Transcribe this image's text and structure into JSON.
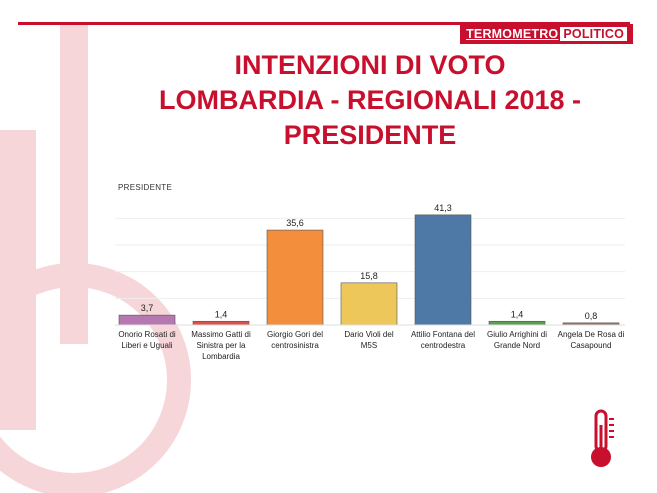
{
  "header": {
    "brand_part1": "TERMOMETRO",
    "brand_part2": "POLITICO",
    "title_lines": [
      "INTENZIONI DI VOTO",
      "LOMBARDIA - REGIONALI 2018 -",
      "PRESIDENTE"
    ]
  },
  "chart_data": {
    "type": "bar",
    "title": "PRESIDENTE",
    "categories": [
      "Onorio Rosati di Liberi e Uguali",
      "Massimo Gatti di Sinistra per la Lombardia",
      "Giorgio Gori del centrosinistra",
      "Dario Violi del M5S",
      "Attilio Fontana del centrodestra",
      "Giulio Arrighini di Grande Nord",
      "Angela De Rosa di Casapound"
    ],
    "category_lines": [
      [
        "Onorio Rosati di",
        "Liberi e Uguali"
      ],
      [
        "Massimo Gatti di",
        "Sinistra per la",
        "Lombardia"
      ],
      [
        "Giorgio Gori del",
        "centrosinistra"
      ],
      [
        "Dario Violi del",
        "M5S"
      ],
      [
        "Attilio Fontana del",
        "centrodestra"
      ],
      [
        "Giulio Arrighini di",
        "Grande Nord"
      ],
      [
        "Angela De Rosa di",
        "Casapound"
      ]
    ],
    "values": [
      3.7,
      1.4,
      35.6,
      15.8,
      41.3,
      1.4,
      0.8
    ],
    "value_labels": [
      "3,7",
      "1,4",
      "35,6",
      "15,8",
      "41,3",
      "1,4",
      "0,8"
    ],
    "colors": [
      "#b678b0",
      "#e0504a",
      "#f28e3c",
      "#eec75b",
      "#4e79a7",
      "#59a14f",
      "#9c755f"
    ],
    "ylim": [
      0,
      45
    ],
    "grid": true,
    "xlabel": "",
    "ylabel": ""
  },
  "colors": {
    "accent": "#c8102e",
    "deco": "#f6d3d6"
  },
  "icons": {
    "thermometer": "thermometer-icon"
  }
}
